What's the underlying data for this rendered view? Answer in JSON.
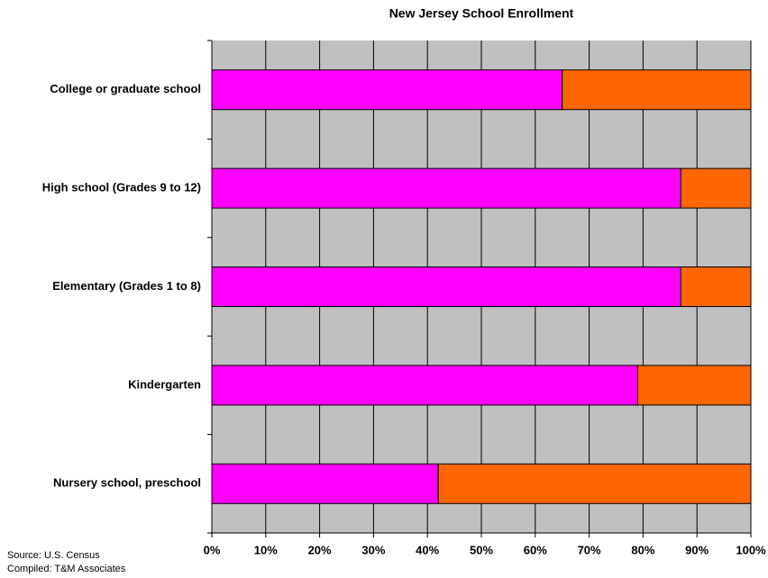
{
  "chart_data": {
    "type": "stacked-barh",
    "title": "New Jersey School Enrollment",
    "categories": [
      "College or graduate school",
      "High school (Grades 9 to 12)",
      "Elementary (Grades 1 to 8)",
      "Kindergarten",
      "Nursery school, preschool"
    ],
    "series": [
      {
        "color": "#ff00ff",
        "values": [
          65,
          87,
          87,
          79,
          42
        ]
      },
      {
        "color": "#ff6600",
        "values": [
          35,
          13,
          13,
          21,
          58
        ]
      }
    ],
    "xlim": [
      0,
      100
    ],
    "xticks": [
      {
        "value": 0,
        "label": "0%"
      },
      {
        "value": 10,
        "label": "10%"
      },
      {
        "value": 20,
        "label": "20%"
      },
      {
        "value": 30,
        "label": "30%"
      },
      {
        "value": 40,
        "label": "40%"
      },
      {
        "value": 50,
        "label": "50%"
      },
      {
        "value": 60,
        "label": "60%"
      },
      {
        "value": 70,
        "label": "70%"
      },
      {
        "value": 80,
        "label": "80%"
      },
      {
        "value": 90,
        "label": "90%"
      },
      {
        "value": 100,
        "label": "100%"
      }
    ],
    "grid": true,
    "annotations": [
      "Source: U.S. Census",
      "Compiled: T&M Associates"
    ]
  }
}
